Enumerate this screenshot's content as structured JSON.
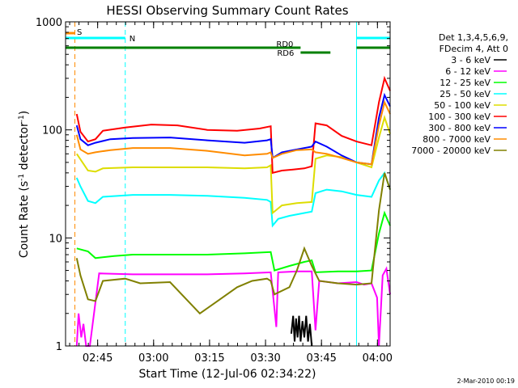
{
  "chart_data": {
    "type": "line",
    "title": "HESSI Observing Summary Count Rates",
    "xlabel": "Start Time (12-Jul-06 02:34:22)",
    "ylabel_main": "Count Rate (s",
    "ylabel_sup1": "-1",
    "ylabel_mid": " detector",
    "ylabel_sup2": "-1",
    "ylabel_end": ")",
    "y_scale": "log",
    "ylim": [
      1,
      1000
    ],
    "x_range_minutes": [
      2.0,
      89.0
    ],
    "y_ticks": [
      {
        "value": 1,
        "label": "1"
      },
      {
        "value": 10,
        "label": "10"
      },
      {
        "value": 100,
        "label": "100"
      },
      {
        "value": 1000,
        "label": "1000"
      }
    ],
    "x_ticks": [
      {
        "minute": 10.6,
        "label": "02:45"
      },
      {
        "minute": 25.6,
        "label": "03:00"
      },
      {
        "minute": 40.6,
        "label": "03:15"
      },
      {
        "minute": 55.6,
        "label": "03:30"
      },
      {
        "minute": 70.6,
        "label": "03:45"
      },
      {
        "minute": 85.6,
        "label": "04:00"
      }
    ],
    "legend_title": [
      "Det 1,3,4,5,6,9,",
      "FDecim 4, Att 0"
    ],
    "series": [
      {
        "name": "3 - 6 keV",
        "color": "#000000",
        "values": [
          [
            62.5,
            1.3
          ],
          [
            63.0,
            1.9
          ],
          [
            63.4,
            1.1
          ],
          [
            63.8,
            1.8
          ],
          [
            64.2,
            1.2
          ],
          [
            64.6,
            1.9
          ],
          [
            65.0,
            1.1
          ],
          [
            65.5,
            1.7
          ],
          [
            66.0,
            1.2
          ],
          [
            66.5,
            1.9
          ],
          [
            67.0,
            1.1
          ],
          [
            67.5,
            1.6
          ],
          [
            68.0,
            1.0
          ]
        ]
      },
      {
        "name": "6 - 12 keV",
        "color": "#ff00ff",
        "values": [
          [
            5.0,
            1.0
          ],
          [
            5.5,
            2.0
          ],
          [
            6.2,
            1.2
          ],
          [
            6.8,
            1.6
          ],
          [
            7.5,
            1.0
          ],
          [
            8.5,
            1.0
          ],
          [
            11,
            4.7
          ],
          [
            20,
            4.6
          ],
          [
            30,
            4.6
          ],
          [
            40,
            4.6
          ],
          [
            50,
            4.7
          ],
          [
            57,
            4.8
          ],
          [
            58.5,
            1.5
          ],
          [
            59,
            4.8
          ],
          [
            64,
            4.9
          ],
          [
            68,
            4.9
          ],
          [
            69,
            1.4
          ],
          [
            70,
            4.0
          ],
          [
            75,
            3.8
          ],
          [
            80,
            3.9
          ],
          [
            82,
            3.7
          ],
          [
            84,
            3.8
          ],
          [
            85.5,
            2.8
          ],
          [
            86,
            1.0
          ],
          [
            87,
            4.5
          ],
          [
            88,
            5.2
          ],
          [
            89,
            3.0
          ]
        ]
      },
      {
        "name": "12 - 25 keV",
        "color": "#00ff00",
        "values": [
          [
            5,
            8.0
          ],
          [
            8,
            7.5
          ],
          [
            10,
            6.5
          ],
          [
            15,
            6.8
          ],
          [
            20,
            7.0
          ],
          [
            30,
            7.0
          ],
          [
            40,
            7.0
          ],
          [
            50,
            7.2
          ],
          [
            57,
            7.4
          ],
          [
            58,
            5.0
          ],
          [
            62,
            5.5
          ],
          [
            66,
            6.0
          ],
          [
            68,
            6.2
          ],
          [
            69,
            4.8
          ],
          [
            75,
            4.9
          ],
          [
            80,
            4.9
          ],
          [
            84,
            5.0
          ],
          [
            86,
            11
          ],
          [
            87.5,
            17
          ],
          [
            89,
            13
          ]
        ]
      },
      {
        "name": "25 - 50 keV",
        "color": "#00ffff",
        "values": [
          [
            5,
            36
          ],
          [
            6,
            30
          ],
          [
            8,
            22
          ],
          [
            10,
            21
          ],
          [
            12,
            24
          ],
          [
            20,
            25
          ],
          [
            30,
            25
          ],
          [
            40,
            24.5
          ],
          [
            50,
            23.5
          ],
          [
            56,
            22.5
          ],
          [
            57,
            21.5
          ],
          [
            57.5,
            13
          ],
          [
            59,
            15
          ],
          [
            62,
            16
          ],
          [
            66,
            17
          ],
          [
            68,
            17.5
          ],
          [
            69,
            26
          ],
          [
            72,
            28
          ],
          [
            76,
            27
          ],
          [
            80,
            25
          ],
          [
            84,
            24
          ],
          [
            86,
            34
          ],
          [
            87.5,
            40
          ],
          [
            89,
            28
          ]
        ]
      },
      {
        "name": "50 - 100 keV",
        "color": "#dddd00",
        "values": [
          [
            5,
            60
          ],
          [
            8,
            42
          ],
          [
            10,
            41
          ],
          [
            12,
            44
          ],
          [
            20,
            45
          ],
          [
            30,
            45
          ],
          [
            40,
            45
          ],
          [
            50,
            44
          ],
          [
            56,
            45
          ],
          [
            57,
            47
          ],
          [
            57.5,
            17
          ],
          [
            60,
            20
          ],
          [
            64,
            21
          ],
          [
            68,
            21.5
          ],
          [
            69,
            54
          ],
          [
            72,
            58
          ],
          [
            76,
            56
          ],
          [
            80,
            50
          ],
          [
            84,
            45
          ],
          [
            86,
            85
          ],
          [
            87.5,
            130
          ],
          [
            89,
            92
          ]
        ]
      },
      {
        "name": "100 - 300 keV",
        "color": "#ff0000",
        "values": [
          [
            5,
            140
          ],
          [
            6,
            96
          ],
          [
            8,
            78
          ],
          [
            10,
            82
          ],
          [
            12,
            98
          ],
          [
            18,
            105
          ],
          [
            25,
            112
          ],
          [
            32,
            110
          ],
          [
            40,
            100
          ],
          [
            48,
            98
          ],
          [
            54,
            103
          ],
          [
            57,
            108
          ],
          [
            57.5,
            40
          ],
          [
            60,
            42
          ],
          [
            63,
            43
          ],
          [
            66,
            44
          ],
          [
            68,
            46
          ],
          [
            69,
            115
          ],
          [
            72,
            110
          ],
          [
            76,
            88
          ],
          [
            80,
            78
          ],
          [
            84,
            72
          ],
          [
            86,
            180
          ],
          [
            87.5,
            300
          ],
          [
            89,
            230
          ]
        ]
      },
      {
        "name": "300 - 800 keV",
        "color": "#0000ff",
        "values": [
          [
            5,
            110
          ],
          [
            6,
            82
          ],
          [
            8,
            72
          ],
          [
            10,
            76
          ],
          [
            14,
            82
          ],
          [
            20,
            84
          ],
          [
            30,
            85
          ],
          [
            40,
            80
          ],
          [
            50,
            76
          ],
          [
            56,
            80
          ],
          [
            57,
            82
          ],
          [
            57.5,
            55
          ],
          [
            60,
            62
          ],
          [
            64,
            66
          ],
          [
            68,
            70
          ],
          [
            69,
            78
          ],
          [
            72,
            70
          ],
          [
            76,
            58
          ],
          [
            80,
            50
          ],
          [
            84,
            48
          ],
          [
            86,
            130
          ],
          [
            87.5,
            210
          ],
          [
            89,
            165
          ]
        ]
      },
      {
        "name": "800 - 7000 keV",
        "color": "#ff8c00",
        "values": [
          [
            5,
            90
          ],
          [
            6,
            66
          ],
          [
            8,
            60
          ],
          [
            10,
            62
          ],
          [
            14,
            65
          ],
          [
            20,
            68
          ],
          [
            30,
            68
          ],
          [
            40,
            64
          ],
          [
            50,
            58
          ],
          [
            56,
            60
          ],
          [
            57,
            62
          ],
          [
            57.5,
            55
          ],
          [
            60,
            60
          ],
          [
            64,
            65
          ],
          [
            68,
            66
          ],
          [
            69,
            62
          ],
          [
            72,
            60
          ],
          [
            76,
            55
          ],
          [
            80,
            50
          ],
          [
            84,
            48
          ],
          [
            86,
            110
          ],
          [
            87.5,
            180
          ],
          [
            89,
            140
          ]
        ]
      },
      {
        "name": "7000 - 20000 keV",
        "color": "#808000",
        "values": [
          [
            5,
            6.5
          ],
          [
            6,
            4.5
          ],
          [
            8,
            2.7
          ],
          [
            10,
            2.6
          ],
          [
            12,
            4.0
          ],
          [
            18,
            4.2
          ],
          [
            22,
            3.8
          ],
          [
            30,
            3.9
          ],
          [
            38,
            2.0
          ],
          [
            42,
            2.5
          ],
          [
            48,
            3.5
          ],
          [
            52,
            4.0
          ],
          [
            56,
            4.2
          ],
          [
            57,
            4.0
          ],
          [
            58,
            3.0
          ],
          [
            62,
            3.5
          ],
          [
            64,
            5.0
          ],
          [
            66,
            8.0
          ],
          [
            68,
            5.5
          ],
          [
            70,
            4.0
          ],
          [
            75,
            3.8
          ],
          [
            80,
            3.7
          ],
          [
            84,
            3.8
          ],
          [
            86,
            18
          ],
          [
            87.5,
            40
          ],
          [
            89,
            28
          ]
        ]
      }
    ],
    "flags": [
      {
        "label": "S",
        "color": "#ff8c00",
        "row": 1,
        "segments": [
          [
            2.0,
            4.5
          ]
        ]
      },
      {
        "label": "N",
        "color": "#00ffff",
        "row": 2,
        "segments": [
          [
            2.0,
            18.0
          ],
          [
            80.0,
            89.0
          ]
        ]
      },
      {
        "label": "RD0",
        "color": "#008000",
        "row": 3,
        "segments": [
          [
            2.0,
            65.0
          ],
          [
            80.0,
            89.0
          ]
        ]
      },
      {
        "label": "RD6",
        "color": "#008000",
        "row": 4,
        "segments": [
          [
            65.0,
            73.0
          ]
        ]
      }
    ],
    "vlines": [
      {
        "minute": 2.0,
        "color": "#00ffff",
        "style": "solid"
      },
      {
        "minute": 4.5,
        "color": "#ff8c00",
        "style": "dashed"
      },
      {
        "minute": 18.0,
        "color": "#00ffff",
        "style": "dashed"
      },
      {
        "minute": 80.0,
        "color": "#00ffff",
        "style": "solid"
      },
      {
        "minute": 89.0,
        "color": "#00ffff",
        "style": "dashed"
      }
    ]
  },
  "footer_date": "2-Mar-2010 00:19"
}
